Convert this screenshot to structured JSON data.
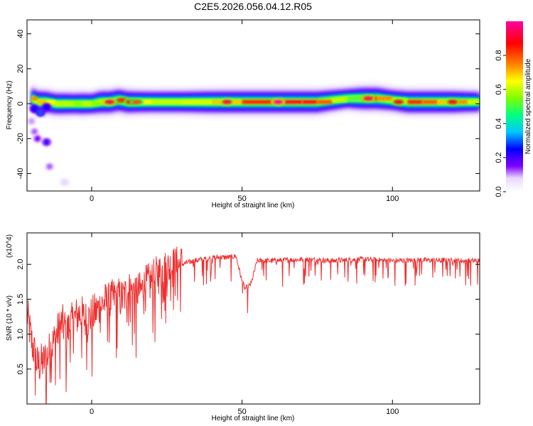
{
  "title": "C2E5.2026.056.04.12.R05",
  "colors": {
    "snr_line": "#ee3030",
    "axis": "#000000",
    "colormap": [
      "#ffffff",
      "#8000ff",
      "#0000ff",
      "#00c8ff",
      "#00ff80",
      "#80ff00",
      "#ffff00",
      "#ff8000",
      "#ff0000",
      "#ff00a0"
    ]
  },
  "chart_data": [
    {
      "type": "heatmap",
      "xlabel": "Height of straight line (km)",
      "ylabel": "Frequency (Hz)",
      "xlim": [
        -21.5,
        129
      ],
      "ylim": [
        -50,
        48
      ],
      "xticks": [
        "0",
        "50",
        "100"
      ],
      "yticks": [
        "40",
        "20",
        "0",
        "-20",
        "-40"
      ],
      "colorbar": {
        "label": "Normalized spectral amplitude",
        "range": [
          0,
          1
        ],
        "ticks": [
          "0.0",
          "0.2",
          "0.4",
          "0.6",
          "0.8"
        ]
      },
      "band": {
        "x": [
          -20,
          -18,
          -15,
          -12,
          -9,
          -6,
          -3,
          0,
          3,
          6,
          9,
          12,
          15,
          20,
          30,
          40,
          50,
          60,
          70,
          75,
          80,
          85,
          90,
          95,
          100,
          105,
          110,
          115,
          120,
          125,
          129
        ],
        "center_freq": [
          3,
          1,
          1,
          0,
          0,
          0,
          0,
          0,
          1,
          1,
          2,
          1,
          1,
          1,
          1,
          1,
          1,
          1,
          1,
          1,
          2,
          3,
          3,
          3,
          2,
          1,
          1,
          1,
          1,
          1,
          1
        ],
        "amplitude": [
          0.75,
          0.7,
          0.65,
          0.6,
          0.6,
          0.55,
          0.6,
          0.55,
          0.7,
          0.8,
          0.8,
          0.7,
          0.65,
          0.6,
          0.62,
          0.7,
          0.85,
          0.9,
          0.9,
          0.8,
          0.6,
          0.5,
          0.85,
          0.75,
          0.6,
          0.85,
          0.8,
          0.7,
          0.75,
          0.6,
          0.55
        ]
      },
      "blobs": [
        {
          "x": 6,
          "y": 1,
          "value": 0.95
        },
        {
          "x": 10,
          "y": 2,
          "value": 0.85
        },
        {
          "x": 13,
          "y": 1,
          "value": 0.85
        },
        {
          "x": 15,
          "y": 1,
          "value": 0.8
        },
        {
          "x": 45,
          "y": 1,
          "value": 0.95
        },
        {
          "x": 62,
          "y": 1,
          "value": 1.0
        },
        {
          "x": 92,
          "y": 3,
          "value": 0.95
        },
        {
          "x": 102,
          "y": 1,
          "value": 0.9
        },
        {
          "x": 120,
          "y": 1,
          "value": 0.9
        },
        {
          "x": -19,
          "y": -3,
          "value": 0.25
        },
        {
          "x": -17,
          "y": -5,
          "value": 0.3
        },
        {
          "x": -15,
          "y": -2,
          "value": 0.25
        },
        {
          "x": -20,
          "y": -10,
          "value": 0.1
        },
        {
          "x": -19,
          "y": -16,
          "value": 0.12
        },
        {
          "x": -18,
          "y": -20,
          "value": 0.15
        },
        {
          "x": -15,
          "y": -22,
          "value": 0.2
        },
        {
          "x": -14,
          "y": -36,
          "value": 0.12
        },
        {
          "x": -9,
          "y": -45,
          "value": 0.08
        }
      ]
    },
    {
      "type": "line",
      "xlabel": "Height of straight line (km)",
      "ylabel": "SNR (10 * v/v)",
      "multiplier": "(x10^4)",
      "xlim": [
        -21.5,
        129
      ],
      "ylim": [
        0.0,
        2.45
      ],
      "xticks": [
        "0",
        "50",
        "100"
      ],
      "yticks": [
        "0.5",
        "1.0",
        "1.5",
        "2.0"
      ],
      "series": [
        {
          "name": "SNR",
          "x": [
            -21.5,
            -20,
            -18,
            -16,
            -14,
            -12,
            -10,
            -8,
            -6,
            -4,
            -2,
            0,
            2,
            4,
            6,
            8,
            10,
            12,
            14,
            16,
            18,
            20,
            22,
            24,
            26,
            28,
            30,
            34,
            38,
            42,
            46,
            48,
            50,
            51,
            52,
            53,
            55,
            60,
            70,
            80,
            90,
            100,
            110,
            120,
            129
          ],
          "values": [
            1.3,
            0.9,
            0.55,
            0.6,
            0.75,
            0.95,
            1.15,
            1.05,
            1.2,
            1.3,
            1.2,
            1.25,
            1.35,
            1.45,
            1.45,
            1.55,
            1.5,
            1.6,
            1.65,
            1.6,
            1.7,
            1.75,
            1.85,
            1.9,
            1.95,
            1.97,
            2.0,
            2.05,
            2.08,
            2.1,
            2.1,
            2.12,
            1.75,
            1.65,
            1.68,
            1.72,
            2.05,
            2.05,
            2.07,
            2.05,
            2.07,
            2.05,
            2.06,
            2.05,
            2.05
          ]
        }
      ]
    }
  ]
}
